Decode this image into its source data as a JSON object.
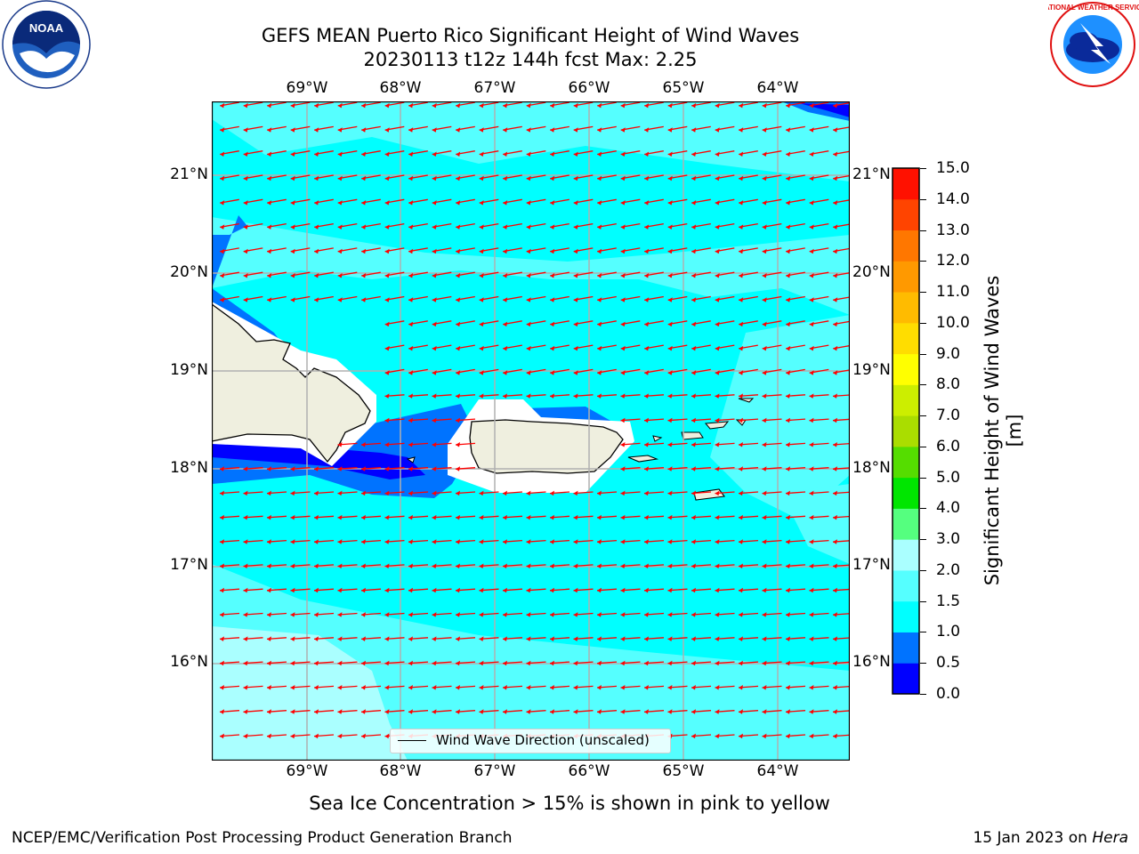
{
  "title_line1": "GEFS MEAN Puerto Rico Significant Height of Wind Waves",
  "title_line2": "20230113 t12z 144h fcst   Max: 2.25",
  "lon_labels": [
    "69°W",
    "68°W",
    "67°W",
    "66°W",
    "65°W",
    "64°W"
  ],
  "lat_labels": [
    "21°N",
    "20°N",
    "19°N",
    "18°N",
    "17°N",
    "16°N"
  ],
  "colorbar": {
    "label": "Significant Height of Wind Waves [m]",
    "ticks": [
      "0.0",
      "0.5",
      "1.0",
      "1.5",
      "2.0",
      "3.0",
      "4.0",
      "5.0",
      "6.0",
      "7.0",
      "8.0",
      "9.0",
      "10.0",
      "11.0",
      "12.0",
      "13.0",
      "14.0",
      "15.0"
    ],
    "colors": [
      "#0000ff",
      "#0073ff",
      "#00ffff",
      "#55ffff",
      "#aaffff",
      "#55ff7f",
      "#00e600",
      "#55dd00",
      "#aadd00",
      "#ccee00",
      "#ffff00",
      "#ffdd00",
      "#ffbb00",
      "#ff9900",
      "#ff7700",
      "#ff4400",
      "#ff1100"
    ]
  },
  "legend_text": "Wind Wave Direction (unscaled)",
  "sea_ice_note": "Sea Ice Concentration > 15% is shown in pink to yellow",
  "footer_left": "NCEP/EMC/Verification Post Processing Product Generation Branch",
  "footer_right_prefix": "15 Jan 2023 on ",
  "footer_right_host": "Hera",
  "colors": {
    "ocean_main": "#00ffff",
    "ocean_light": "#55ffff",
    "ocean_lighter": "#aaffff",
    "ocean_mid": "#0073ff",
    "ocean_deep": "#0000ff",
    "land": "#efefdf",
    "arrows": "#ff0000",
    "grid": "#b0b0b0"
  },
  "logos": {
    "left": "NOAA",
    "right": "NATIONAL WEATHER SERVICE"
  }
}
